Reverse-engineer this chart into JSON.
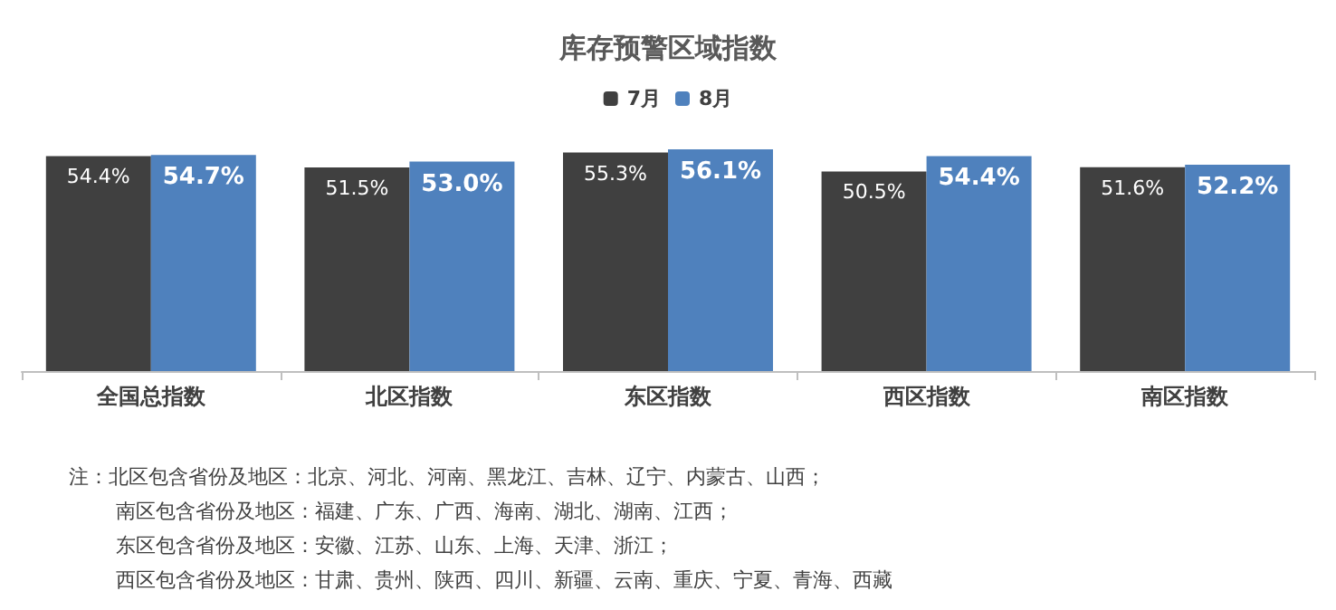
{
  "chart_data": {
    "type": "bar",
    "title": "库存预警区域指数",
    "categories": [
      "全国总指数",
      "北区指数",
      "东区指数",
      "西区指数",
      "南区指数"
    ],
    "series": [
      {
        "name": "7月",
        "color": "#404040",
        "values": [
          54.4,
          51.5,
          55.3,
          50.5,
          51.6
        ],
        "value_labels": [
          "54.4%",
          "51.5%",
          "55.3%",
          "50.5%",
          "51.6%"
        ]
      },
      {
        "name": "8月",
        "color": "#4f81bd",
        "values": [
          54.7,
          53.0,
          56.1,
          54.4,
          52.2
        ],
        "value_labels": [
          "54.7%",
          "53.0%",
          "56.1%",
          "54.4%",
          "52.2%"
        ]
      }
    ],
    "tick_labels": "x",
    "legend": "top",
    "annotations": [
      "注：北区包含省份及地区：北京、河北、河南、黑龙江、吉林、辽宁、内蒙古、山西；",
      "南区包含省份及地区：福建、广东、广西、海南、湖北、湖南、江西；",
      "东区包含省份及地区：安徽、江苏、山东、上海、天津、浙江；",
      "西区包含省份及地区：甘肃、贵州、陕西、四川、新疆、云南、重庆、宁夏、青海、西藏"
    ]
  }
}
